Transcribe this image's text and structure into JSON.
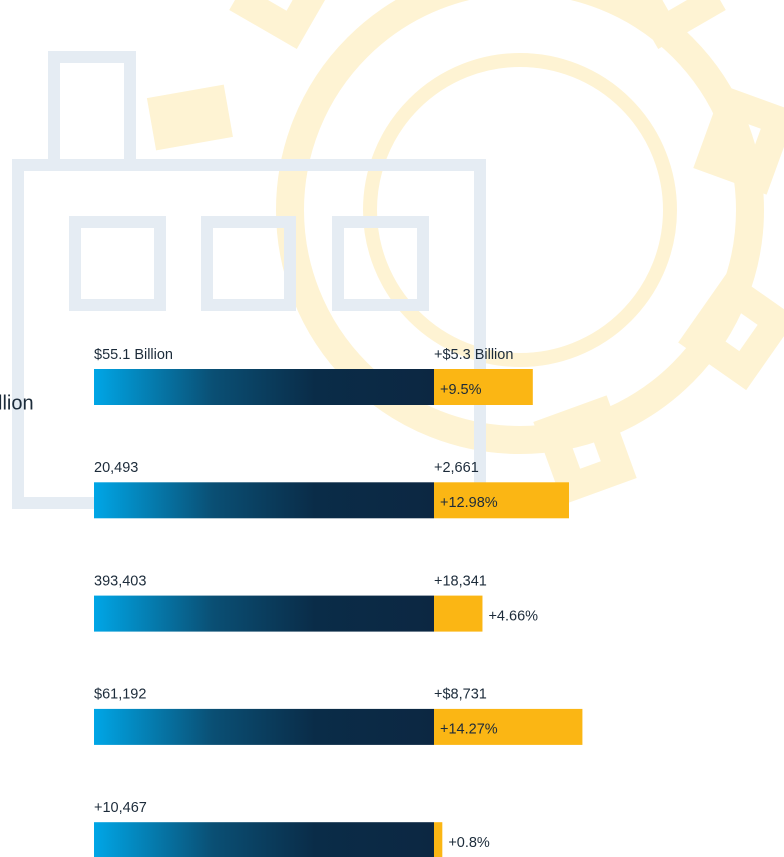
{
  "side_label": "llion",
  "rows": [
    {
      "base_label": "$55.1 Billion",
      "growth_label": "+$5.3 Billion",
      "pct": 9.5,
      "pct_label": "+9.5%"
    },
    {
      "base_label": "20,493",
      "growth_label": "+2,661",
      "pct": 12.98,
      "pct_label": "+12.98%"
    },
    {
      "base_label": "393,403",
      "growth_label": "+18,341",
      "pct": 4.66,
      "pct_label": "+4.66%"
    },
    {
      "base_label": "$61,192",
      "growth_label": "+$8,731",
      "pct": 14.27,
      "pct_label": "+14.27%"
    },
    {
      "base_label": "+10,467",
      "pct": 0.8,
      "pct_label": "+0.8%"
    }
  ]
}
